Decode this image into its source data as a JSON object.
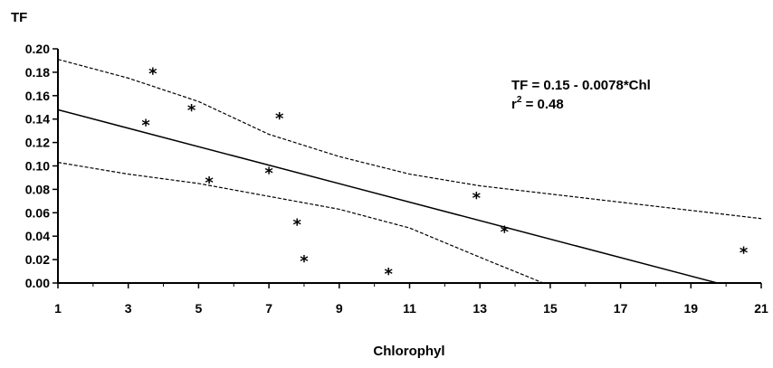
{
  "chart_data": {
    "type": "scatter",
    "ylabel": "TF",
    "xlabel": "Chlorophyl",
    "xlim": [
      1,
      21
    ],
    "ylim": [
      0.0,
      0.2
    ],
    "x_ticks": [
      1,
      3,
      5,
      7,
      9,
      11,
      13,
      15,
      17,
      19,
      21
    ],
    "x_tick_labels": [
      "1",
      "3",
      "5",
      "7",
      "9",
      "11",
      "13",
      "15",
      "17",
      "19",
      "21"
    ],
    "y_ticks": [
      0.0,
      0.02,
      0.04,
      0.06,
      0.08,
      0.1,
      0.12,
      0.14,
      0.16,
      0.18,
      0.2
    ],
    "y_tick_labels": [
      "0.00",
      "0.02",
      "0.04",
      "0.06",
      "0.08",
      "0.10",
      "0.12",
      "0.14",
      "0.16",
      "0.18",
      "0.20"
    ],
    "points": {
      "x": [
        3.7,
        3.5,
        4.8,
        5.3,
        7.0,
        7.3,
        7.8,
        8.0,
        10.4,
        12.9,
        13.7,
        20.5
      ],
      "y": [
        0.181,
        0.137,
        0.15,
        0.088,
        0.096,
        0.143,
        0.052,
        0.021,
        0.01,
        0.075,
        0.046,
        0.028
      ]
    },
    "fit_line": {
      "x": [
        1,
        19.75
      ],
      "y": [
        0.148,
        0.0
      ]
    },
    "upper_ci": {
      "x": [
        1,
        3,
        5,
        7,
        9,
        11,
        13,
        15,
        17,
        19,
        21
      ],
      "y": [
        0.191,
        0.175,
        0.155,
        0.127,
        0.108,
        0.093,
        0.083,
        0.076,
        0.069,
        0.062,
        0.055
      ]
    },
    "lower_ci": {
      "x": [
        1,
        3,
        5,
        7,
        9,
        11,
        13,
        14.8
      ],
      "y": [
        0.103,
        0.093,
        0.085,
        0.074,
        0.063,
        0.047,
        0.022,
        0.0
      ]
    },
    "marker_symbol": "*",
    "annotation": {
      "line1": "TF = 0.15 - 0.0078*Chl",
      "line2_main": "r",
      "line2_sup": "2",
      "line2_rest": " = 0.48"
    },
    "grid": false
  }
}
